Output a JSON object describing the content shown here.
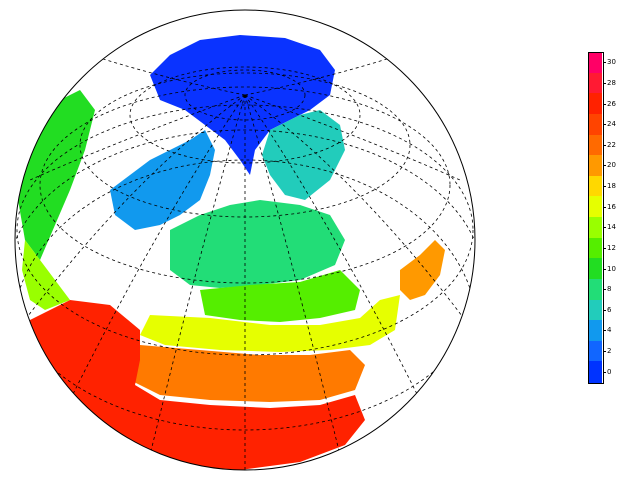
{
  "map": {
    "projection": "orthographic",
    "center": "north-pole tilted toward North America",
    "graticule": "dashed",
    "field": "surface temperature (filled contours)"
  },
  "colorbar": {
    "levels": [
      {
        "label": "30",
        "color": "#ff0066"
      },
      {
        "label": "28",
        "color": "#ff1a33"
      },
      {
        "label": "26",
        "color": "#ff2200"
      },
      {
        "label": "24",
        "color": "#ff4400"
      },
      {
        "label": "22",
        "color": "#ff6a00"
      },
      {
        "label": "20",
        "color": "#ff9900"
      },
      {
        "label": "18",
        "color": "#ffd800"
      },
      {
        "label": "16",
        "color": "#e6ff00"
      },
      {
        "label": "14",
        "color": "#99ff00"
      },
      {
        "label": "12",
        "color": "#55ee00"
      },
      {
        "label": "10",
        "color": "#22dd22"
      },
      {
        "label": "8",
        "color": "#22dd77"
      },
      {
        "label": "6",
        "color": "#22ccbb"
      },
      {
        "label": "4",
        "color": "#1199ee"
      },
      {
        "label": "2",
        "color": "#1166ff"
      },
      {
        "label": "0",
        "color": "#0033ff"
      }
    ]
  }
}
